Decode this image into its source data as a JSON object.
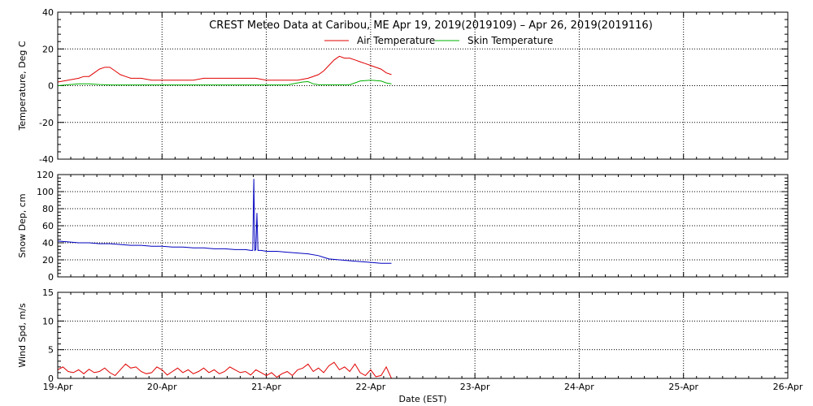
{
  "title": "CREST Meteo Data at Caribou, ME   Apr 19, 2019(2019109) – Apr 26, 2019(2019116)",
  "chart_data": [
    {
      "type": "line",
      "ylabel": "Temperature, Deg C",
      "xlabel": "",
      "xlim": [
        0,
        7
      ],
      "ylim": [
        -40,
        40
      ],
      "yticks": [
        -40,
        -20,
        0,
        20,
        40
      ],
      "grid": true,
      "legend_placement": "top-center",
      "x_unit": "days since 19-Apr 00:00",
      "series": [
        {
          "name": "Air Temperature",
          "color": "#e00000",
          "x": [
            0.0,
            0.1,
            0.2,
            0.25,
            0.3,
            0.35,
            0.4,
            0.45,
            0.5,
            0.55,
            0.6,
            0.65,
            0.7,
            0.8,
            0.9,
            1.0,
            1.1,
            1.2,
            1.3,
            1.4,
            1.5,
            1.6,
            1.7,
            1.8,
            1.9,
            2.0,
            2.1,
            2.2,
            2.3,
            2.4,
            2.5,
            2.55,
            2.6,
            2.65,
            2.7,
            2.75,
            2.8,
            2.85,
            2.9,
            2.95,
            3.0,
            3.05,
            3.1,
            3.15,
            3.2
          ],
          "y": [
            2,
            3,
            4,
            5,
            5,
            7,
            9,
            10,
            10,
            8,
            6,
            5,
            4,
            4,
            3,
            3,
            3,
            3,
            3,
            4,
            4,
            4,
            4,
            4,
            4,
            3,
            3,
            3,
            3,
            4,
            6,
            8,
            11,
            14,
            16,
            15,
            15,
            14,
            13,
            12,
            11,
            10,
            9,
            7,
            6
          ]
        },
        {
          "name": "Skin Temperature",
          "color": "#00b000",
          "x": [
            0.0,
            0.2,
            0.3,
            0.4,
            0.5,
            0.6,
            0.8,
            1.0,
            1.2,
            1.4,
            1.6,
            1.8,
            2.0,
            2.1,
            2.2,
            2.3,
            2.35,
            2.4,
            2.45,
            2.5,
            2.6,
            2.7,
            2.8,
            2.85,
            2.9,
            3.0,
            3.1,
            3.15,
            3.2
          ],
          "y": [
            0,
            1,
            1,
            0.6,
            0.4,
            0.4,
            0.4,
            0.4,
            0.4,
            0.4,
            0.4,
            0.4,
            0.4,
            0.4,
            0.4,
            1.5,
            2,
            2.2,
            1,
            0.5,
            0.5,
            0.5,
            0.5,
            1.5,
            2.5,
            3,
            2.5,
            1.5,
            1
          ]
        }
      ]
    },
    {
      "type": "line",
      "ylabel": "Snow Dep, cm",
      "xlabel": "",
      "xlim": [
        0,
        7
      ],
      "ylim": [
        0,
        120
      ],
      "yticks": [
        0,
        20,
        40,
        60,
        80,
        100,
        120
      ],
      "grid": true,
      "x_unit": "days since 19-Apr 00:00",
      "series": [
        {
          "name": "",
          "color": "#0000c0",
          "x": [
            0.0,
            0.1,
            0.2,
            0.3,
            0.4,
            0.5,
            0.6,
            0.7,
            0.8,
            0.9,
            1.0,
            1.1,
            1.2,
            1.3,
            1.4,
            1.5,
            1.6,
            1.7,
            1.8,
            1.85,
            1.87,
            1.88,
            1.89,
            1.9,
            1.91,
            1.92,
            1.95,
            2.0,
            2.1,
            2.2,
            2.3,
            2.4,
            2.5,
            2.55,
            2.6,
            2.7,
            2.8,
            2.9,
            3.0,
            3.1,
            3.2
          ],
          "y": [
            42,
            41,
            40,
            40,
            39,
            39,
            38,
            37,
            37,
            36,
            36,
            35,
            35,
            34,
            34,
            33,
            33,
            32,
            32,
            31,
            31,
            115,
            31,
            32,
            75,
            31,
            31,
            30,
            30,
            29,
            28,
            27,
            25,
            23,
            21,
            20,
            19,
            18,
            17,
            16,
            16
          ]
        }
      ]
    },
    {
      "type": "line",
      "ylabel": "Wind Spd, m/s",
      "xlabel": "Date (EST)",
      "xlim": [
        0,
        7
      ],
      "ylim": [
        0,
        15
      ],
      "yticks": [
        0,
        5,
        10,
        15
      ],
      "grid": true,
      "x_unit": "days since 19-Apr 00:00",
      "xtick_labels": [
        "19-Apr",
        "20-Apr",
        "21-Apr",
        "22-Apr",
        "23-Apr",
        "24-Apr",
        "25-Apr",
        "26-Apr"
      ],
      "series": [
        {
          "name": "",
          "color": "#e00000",
          "x": [
            0.0,
            0.05,
            0.1,
            0.15,
            0.2,
            0.25,
            0.3,
            0.35,
            0.4,
            0.45,
            0.5,
            0.55,
            0.6,
            0.65,
            0.7,
            0.75,
            0.8,
            0.85,
            0.9,
            0.95,
            1.0,
            1.05,
            1.1,
            1.15,
            1.2,
            1.25,
            1.3,
            1.35,
            1.4,
            1.45,
            1.5,
            1.55,
            1.6,
            1.65,
            1.7,
            1.75,
            1.8,
            1.85,
            1.9,
            1.95,
            2.0,
            2.05,
            2.1,
            2.15,
            2.2,
            2.25,
            2.3,
            2.35,
            2.4,
            2.45,
            2.5,
            2.55,
            2.6,
            2.65,
            2.7,
            2.75,
            2.8,
            2.85,
            2.9,
            2.95,
            3.0,
            3.05,
            3.1,
            3.15,
            3.2
          ],
          "y": [
            1.5,
            2,
            1.2,
            1,
            1.5,
            0.8,
            1.6,
            1,
            1.2,
            1.8,
            1,
            0.5,
            1.5,
            2.5,
            1.8,
            2,
            1.2,
            0.8,
            1,
            2,
            1.5,
            0.6,
            1.2,
            1.8,
            1,
            1.5,
            0.8,
            1.2,
            1.8,
            1,
            1.5,
            0.8,
            1.2,
            2,
            1.5,
            1,
            1.2,
            0.6,
            1.5,
            1,
            0.5,
            1,
            0.2,
            0.8,
            1.2,
            0.5,
            1.5,
            1.8,
            2.5,
            1.2,
            1.8,
            1,
            2.2,
            2.8,
            1.5,
            2,
            1.2,
            2.5,
            1,
            0.5,
            1.5,
            0.3,
            0.5,
            2,
            0
          ]
        }
      ]
    }
  ]
}
